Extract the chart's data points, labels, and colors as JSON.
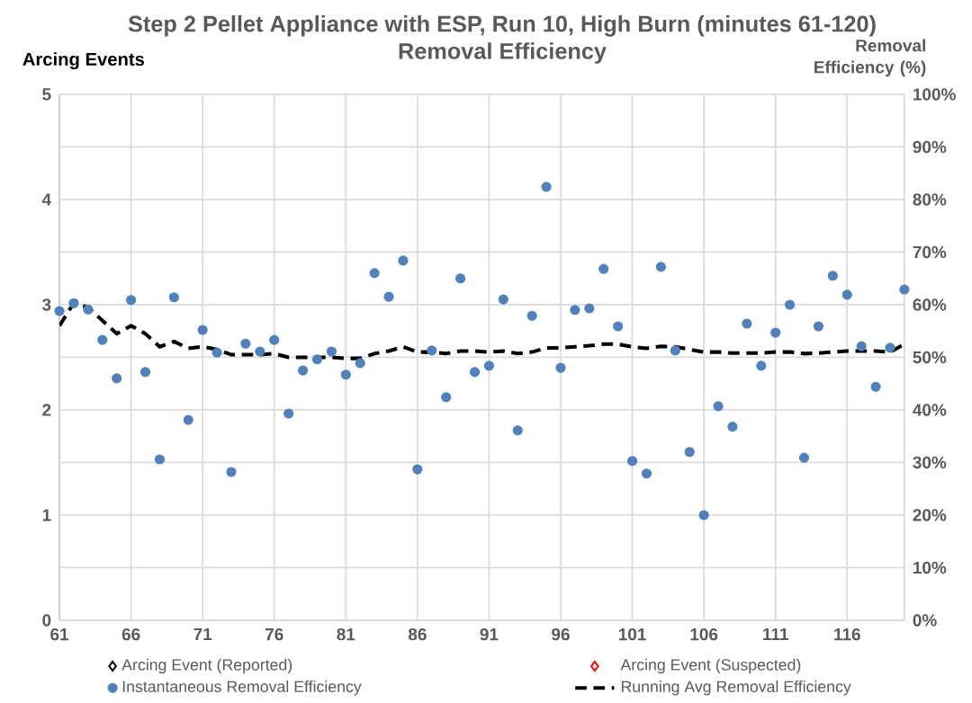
{
  "chart_data": {
    "type": "scatter",
    "title": "Step 2 Pellet Appliance with ESP, Run 10, High Burn (minutes 61-120)",
    "subtitle": "Removal Efficiency",
    "ylabel": "Arcing Events",
    "y2label": "Removal Efficiency  (%)",
    "x": [
      61,
      62,
      63,
      64,
      65,
      66,
      67,
      68,
      69,
      70,
      71,
      72,
      73,
      74,
      75,
      76,
      77,
      78,
      79,
      80,
      81,
      82,
      83,
      84,
      85,
      86,
      87,
      88,
      89,
      90,
      91,
      92,
      93,
      94,
      95,
      96,
      97,
      98,
      99,
      100,
      101,
      102,
      103,
      104,
      105,
      106,
      107,
      108,
      109,
      110,
      111,
      112,
      113,
      114,
      115,
      116,
      117,
      118,
      119,
      120
    ],
    "series": [
      {
        "name": "Arcing Event (Reported)",
        "type": "scatter",
        "marker": "diamond",
        "color": "#000000",
        "axis": "y",
        "values": [
          null,
          null,
          null,
          null,
          null,
          null,
          null,
          null,
          null,
          null,
          null,
          null,
          null,
          null,
          null,
          null,
          null,
          null,
          null,
          null,
          null,
          null,
          null,
          null,
          null,
          null,
          null,
          null,
          null,
          null,
          null,
          null,
          null,
          null,
          null,
          null,
          null,
          null,
          null,
          null,
          null,
          null,
          null,
          null,
          null,
          null,
          null,
          null,
          null,
          null,
          null,
          null,
          null,
          null,
          null,
          null,
          null,
          null,
          null,
          null
        ]
      },
      {
        "name": "Arcing Event (Suspected)",
        "type": "scatter",
        "marker": "diamond",
        "color": "#ff0000",
        "axis": "y",
        "values": [
          null,
          null,
          null,
          null,
          null,
          null,
          null,
          null,
          null,
          null,
          null,
          null,
          null,
          null,
          null,
          null,
          null,
          null,
          null,
          null,
          null,
          null,
          null,
          null,
          null,
          null,
          null,
          null,
          null,
          null,
          null,
          null,
          null,
          null,
          null,
          null,
          null,
          null,
          null,
          null,
          null,
          null,
          null,
          null,
          null,
          null,
          null,
          null,
          null,
          null,
          null,
          null,
          null,
          null,
          null,
          null,
          null,
          null,
          null,
          null
        ]
      },
      {
        "name": "Instantaneous Removal Efficiency",
        "marker": "circle",
        "color": "#4f81bd",
        "axis": "y2",
        "values": [
          58.8,
          60.3,
          59.1,
          53.3,
          46.0,
          60.9,
          47.2,
          30.6,
          61.4,
          38.1,
          55.2,
          50.9,
          28.2,
          52.6,
          51.1,
          53.3,
          39.3,
          47.5,
          49.6,
          51.1,
          46.7,
          48.9,
          66.0,
          61.5,
          68.4,
          28.7,
          51.3,
          42.4,
          65.0,
          47.2,
          48.4,
          61.0,
          36.1,
          57.9,
          82.4,
          48.0,
          59.0,
          59.3,
          66.8,
          55.9,
          30.3,
          27.9,
          67.2,
          51.3,
          32.0,
          20.0,
          40.7,
          36.8,
          56.4,
          48.4,
          54.7,
          60.0,
          30.9,
          55.9,
          65.5,
          61.9,
          52.1,
          44.4,
          51.8,
          62.9
        ]
      },
      {
        "name": "Running Avg Removal Efficiency",
        "type": "line",
        "marker": "none",
        "line_style": "dashed",
        "color": "#000000",
        "axis": "y2",
        "values": [
          56,
          60.3,
          59.5,
          57,
          54.5,
          56,
          54.5,
          52,
          53,
          51.7,
          52,
          51.5,
          50.5,
          50.5,
          50.5,
          50.7,
          50,
          50,
          50,
          50,
          49.8,
          49.8,
          50.7,
          51.2,
          52,
          51,
          51,
          50.7,
          51.2,
          51.2,
          51,
          51.2,
          50.7,
          51,
          51.8,
          51.8,
          52,
          52.2,
          52.5,
          52.5,
          52,
          51.7,
          52.1,
          52,
          51.5,
          51,
          51,
          50.8,
          50.8,
          50.8,
          51,
          51,
          50.7,
          50.8,
          51,
          51.2,
          51.2,
          51.2,
          51,
          52.5
        ]
      }
    ],
    "xlim": [
      61,
      120
    ],
    "xticks": [
      61,
      66,
      71,
      76,
      81,
      86,
      91,
      96,
      101,
      106,
      111,
      116
    ],
    "ylim": [
      0,
      5
    ],
    "yticks": [
      0,
      1,
      2,
      3,
      4,
      5
    ],
    "y2lim": [
      0,
      100
    ],
    "y2ticks": [
      {
        "value": 0,
        "label": "0%"
      },
      {
        "value": 10,
        "label": "10%"
      },
      {
        "value": 20,
        "label": "20%"
      },
      {
        "value": 30,
        "label": "30%"
      },
      {
        "value": 40,
        "label": "40%"
      },
      {
        "value": 50,
        "label": "50%"
      },
      {
        "value": 60,
        "label": "60%"
      },
      {
        "value": 70,
        "label": "70%"
      },
      {
        "value": 80,
        "label": "80%"
      },
      {
        "value": 90,
        "label": "90%"
      },
      {
        "value": 100,
        "label": "100%"
      }
    ],
    "grid": true,
    "legend": "bottom"
  }
}
